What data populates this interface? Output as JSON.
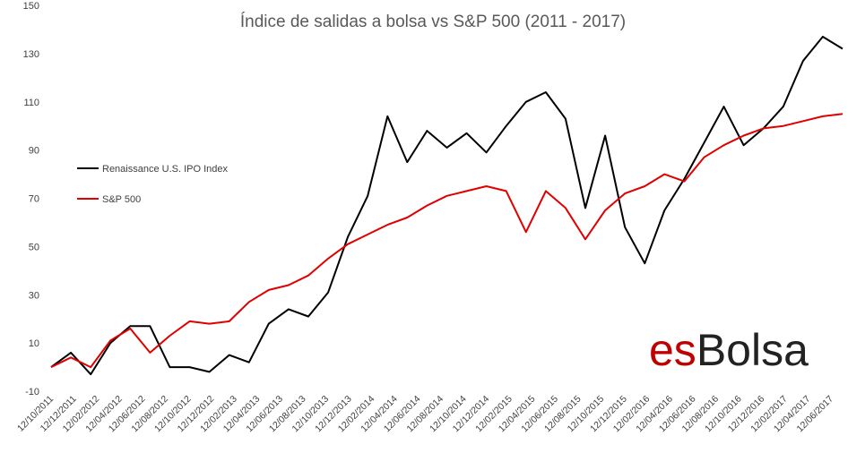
{
  "chart_data": {
    "type": "line",
    "title": "Índice de salidas a bolsa vs S&P 500 (2011 - 2017)",
    "xlabel": "",
    "ylabel": "",
    "ylim": [
      -10,
      150
    ],
    "yticks": [
      "150",
      "130",
      "110",
      "90",
      "70",
      "50",
      "30",
      "10",
      "-10"
    ],
    "xticks": [
      "12/10/2011",
      "12/12/2011",
      "12/02/2012",
      "12/04/2012",
      "12/06/2012",
      "12/08/2012",
      "12/10/2012",
      "12/12/2012",
      "12/02/2013",
      "12/04/2013",
      "12/06/2013",
      "12/08/2013",
      "12/10/2013",
      "12/12/2013",
      "12/02/2014",
      "12/04/2014",
      "12/06/2014",
      "12/08/2014",
      "12/10/2014",
      "12/12/2014",
      "12/02/2015",
      "12/04/2015",
      "12/06/2015",
      "12/08/2015",
      "12/10/2015",
      "12/12/2015",
      "12/02/2016",
      "12/04/2016",
      "12/06/2016",
      "12/08/2016",
      "12/10/2016",
      "12/12/2016",
      "12/02/2017",
      "12/04/2017",
      "12/06/2017"
    ],
    "grid": false,
    "legend_position": "left",
    "series": [
      {
        "name": "Renaissance U.S. IPO Index",
        "color": "#000000",
        "values": [
          0,
          6,
          -3,
          10,
          17,
          17,
          0,
          0,
          -2,
          5,
          2,
          18,
          24,
          21,
          31,
          54,
          71,
          104,
          85,
          98,
          91,
          97,
          89,
          100,
          110,
          114,
          103,
          66,
          96,
          58,
          43,
          65,
          78,
          93,
          108,
          92,
          99,
          108,
          127,
          137,
          132
        ]
      },
      {
        "name": "S&P 500",
        "color": "#e00000",
        "values": [
          0,
          4,
          0,
          11,
          16,
          6,
          13,
          19,
          18,
          19,
          27,
          32,
          34,
          38,
          45,
          51,
          55,
          59,
          62,
          67,
          71,
          73,
          75,
          73,
          56,
          73,
          66,
          53,
          65,
          72,
          75,
          80,
          77,
          87,
          92,
          96,
          99,
          100,
          102,
          104,
          105
        ]
      }
    ]
  },
  "watermark": {
    "text_es": "es",
    "text_bolsa": "Bolsa",
    "color_es": "#c00000",
    "color_bolsa": "#222222"
  }
}
